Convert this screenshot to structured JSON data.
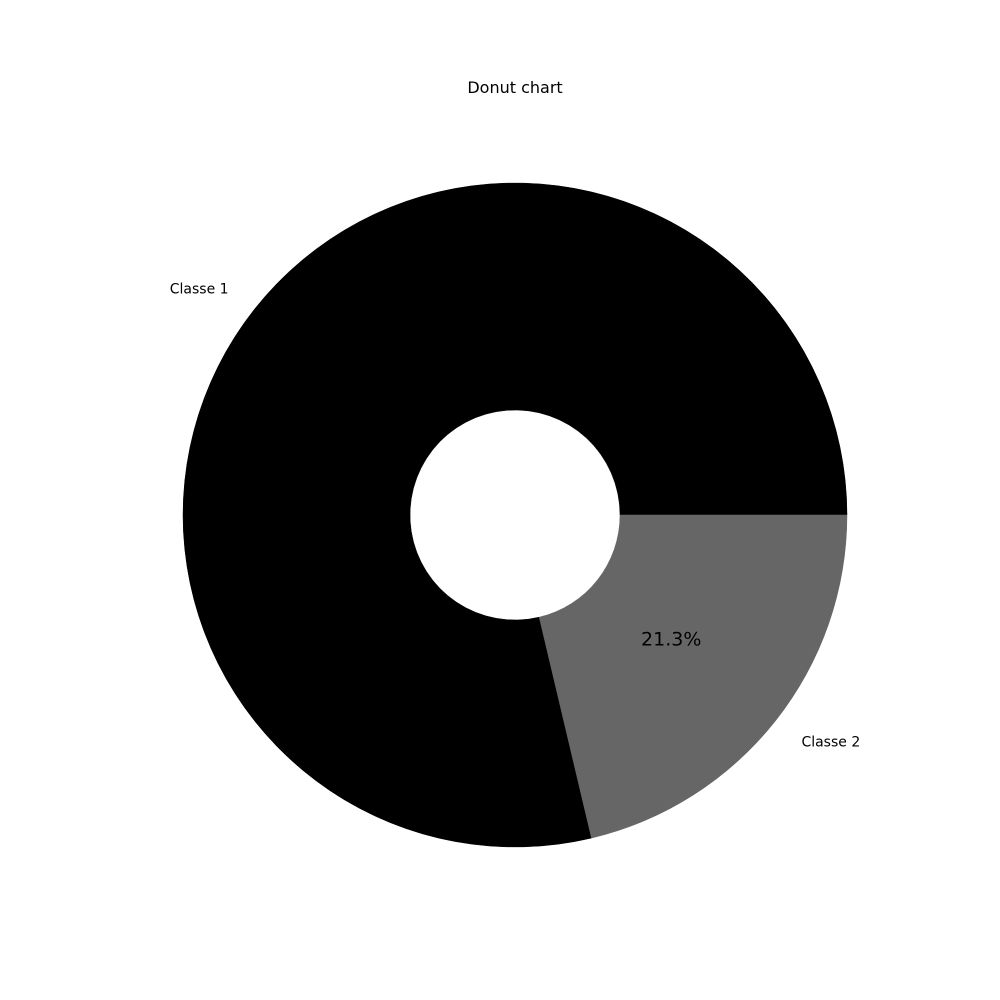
{
  "chart_data": {
    "type": "pie",
    "variant": "donut",
    "title": "Donut chart",
    "start_angle_deg": 0,
    "direction": "counterclockwise",
    "slices": [
      {
        "label": "Classe 1",
        "value": 78.7,
        "color": "#000000",
        "pct_label": ""
      },
      {
        "label": "Classe 2",
        "value": 21.3,
        "color": "#666666",
        "pct_label": "21.3%"
      }
    ],
    "legend": "none",
    "grid": false
  }
}
